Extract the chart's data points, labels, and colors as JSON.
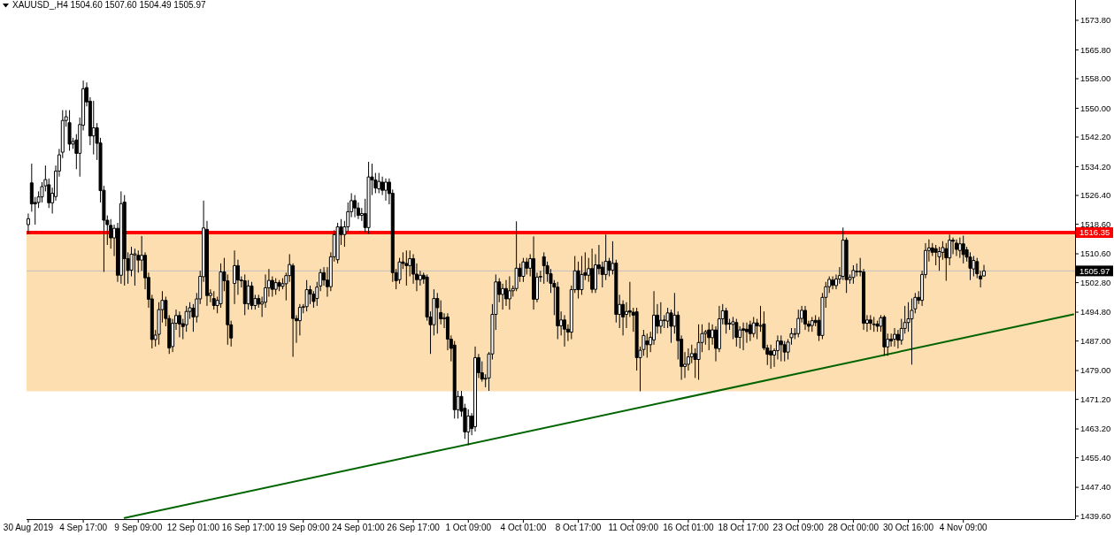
{
  "chart_data": {
    "type": "candlestick",
    "title": "XAUUSD_,H4  1504.60 1507.60 1504.49 1505.97",
    "color": "#000000",
    "categories": [
      "30 Aug 2019",
      null,
      null,
      null,
      null,
      null,
      null,
      null,
      null,
      null,
      null,
      null,
      null,
      null,
      null,
      null,
      "4 Sep 17:00",
      null,
      null,
      null,
      null,
      null,
      null,
      null,
      null,
      null,
      null,
      null,
      null,
      null,
      null,
      null,
      "9 Sep 09:00",
      null,
      null,
      null,
      null,
      null,
      null,
      null,
      null,
      null,
      null,
      null,
      null,
      null,
      null,
      null,
      "12 Sep 01:00",
      null,
      null,
      null,
      null,
      null,
      null,
      null,
      null,
      null,
      null,
      null,
      null,
      null,
      null,
      null,
      "16 Sep 17:00",
      null,
      null,
      null,
      null,
      null,
      null,
      null,
      null,
      null,
      null,
      null,
      null,
      null,
      null,
      null,
      "19 Sep 09:00",
      null,
      null,
      null,
      null,
      null,
      null,
      null,
      null,
      null,
      null,
      null,
      null,
      null,
      null,
      null,
      "24 Sep 01:00",
      null,
      null,
      null,
      null,
      null,
      null,
      null,
      null,
      null,
      null,
      null,
      null,
      null,
      null,
      null,
      "26 Sep 17:00",
      null,
      null,
      null,
      null,
      null,
      null,
      null,
      null,
      null,
      null,
      null,
      null,
      null,
      null,
      null,
      "1 Oct 09:00",
      null,
      null,
      null,
      null,
      null,
      null,
      null,
      null,
      null,
      null,
      null,
      null,
      null,
      null,
      null,
      "4 Oct 01:00",
      null,
      null,
      null,
      null,
      null,
      null,
      null,
      null,
      null,
      null,
      null,
      null,
      null,
      null,
      null,
      "8 Oct 17:00",
      null,
      null,
      null,
      null,
      null,
      null,
      null,
      null,
      null,
      null,
      null,
      null,
      null,
      null,
      null,
      "11 Oct 09:00",
      null,
      null,
      null,
      null,
      null,
      null,
      null,
      null,
      null,
      null,
      null,
      null,
      null,
      null,
      null,
      "16 Oct 01:00",
      null,
      null,
      null,
      null,
      null,
      null,
      null,
      null,
      null,
      null,
      null,
      null,
      null,
      null,
      null,
      "18 Oct 17:00",
      null,
      null,
      null,
      null,
      null,
      null,
      null,
      null,
      null,
      null,
      null,
      null,
      null,
      null,
      null,
      "23 Oct 09:00",
      null,
      null,
      null,
      null,
      null,
      null,
      null,
      null,
      null,
      null,
      null,
      null,
      null,
      null,
      null,
      "28 Oct 00:00",
      null,
      null,
      null,
      null,
      null,
      null,
      null,
      null,
      null,
      null,
      null,
      null,
      null,
      null,
      null,
      "30 Oct 16:00",
      null,
      null,
      null,
      null,
      null,
      null,
      null,
      null,
      null,
      null,
      null,
      null,
      null,
      null,
      null,
      "4 Nov 09:00",
      null,
      null,
      null,
      null,
      null,
      null,
      null,
      null,
      null,
      null,
      null,
      null,
      null,
      null,
      null,
      null,
      null,
      null,
      null,
      null,
      null,
      null,
      null,
      null,
      null,
      null,
      null,
      null,
      null,
      null,
      null,
      null
    ],
    "ohlc": [
      [
        1518.5,
        1521.5,
        1516.0,
        1520.1
      ],
      [
        1529.8,
        1535.0,
        1522.0,
        1524.1
      ],
      [
        1524.5,
        1526.0,
        1518.5,
        1524.1
      ],
      [
        1524.5,
        1527.5,
        1523.0,
        1526.0
      ],
      [
        1526.0,
        1530.0,
        1524.5,
        1528.8
      ],
      [
        1529.0,
        1534.5,
        1527.5,
        1530.7
      ],
      [
        1529.3,
        1531.0,
        1523.0,
        1524.4
      ],
      [
        1524.4,
        1528.5,
        1521.5,
        1527.0
      ],
      [
        1526.1,
        1534.5,
        1525.0,
        1533.0
      ],
      [
        1533.0,
        1539.0,
        1531.5,
        1537.4
      ],
      [
        1538.1,
        1549.5,
        1536.5,
        1546.7
      ],
      [
        1546.7,
        1549.5,
        1545.0,
        1547.7
      ],
      [
        1546.1,
        1549.5,
        1538.5,
        1540.3
      ],
      [
        1540.3,
        1542.0,
        1539.0,
        1541.0
      ],
      [
        1541.4,
        1543.0,
        1533.5,
        1537.8
      ],
      [
        1537.8,
        1547.5,
        1531.5,
        1545.6
      ],
      [
        1545.4,
        1557.5,
        1544.0,
        1555.3
      ],
      [
        1555.6,
        1557.0,
        1550.5,
        1551.7
      ],
      [
        1551.9,
        1553.0,
        1540.0,
        1542.5
      ],
      [
        1542.5,
        1552.0,
        1537.5,
        1544.7
      ],
      [
        1544.7,
        1546.0,
        1536.0,
        1540.5
      ],
      [
        1540.6,
        1542.0,
        1524.5,
        1527.7
      ],
      [
        1527.8,
        1529.0,
        1505.7,
        1519.7
      ],
      [
        1519.7,
        1521.0,
        1513.0,
        1518.5
      ],
      [
        1518.3,
        1520.0,
        1512.0,
        1514.9
      ],
      [
        1514.9,
        1518.5,
        1510.0,
        1517.5
      ],
      [
        1517.5,
        1519.0,
        1503.0,
        1504.8
      ],
      [
        1504.8,
        1527.5,
        1502.5,
        1524.2
      ],
      [
        1524.6,
        1526.5,
        1502.0,
        1509.3
      ],
      [
        1509.3,
        1511.0,
        1502.5,
        1506.1
      ],
      [
        1506.2,
        1512.5,
        1504.5,
        1510.5
      ],
      [
        1510.3,
        1512.0,
        1502.0,
        1510.6
      ],
      [
        1510.2,
        1511.5,
        1505.5,
        1508.9
      ],
      [
        1508.9,
        1515.4,
        1506.0,
        1510.2
      ],
      [
        1510.2,
        1511.0,
        1501.0,
        1504.1
      ],
      [
        1504.2,
        1505.5,
        1496.0,
        1498.3
      ],
      [
        1498.4,
        1499.5,
        1485.0,
        1487.4
      ],
      [
        1487.4,
        1490.0,
        1485.5,
        1488.6
      ],
      [
        1488.8,
        1497.5,
        1486.0,
        1495.5
      ],
      [
        1495.5,
        1500.5,
        1492.0,
        1498.0
      ],
      [
        1498.0,
        1499.0,
        1491.0,
        1493.1
      ],
      [
        1493.1,
        1494.0,
        1483.5,
        1485.1
      ],
      [
        1485.5,
        1493.0,
        1484.0,
        1491.8
      ],
      [
        1491.8,
        1495.5,
        1490.0,
        1493.9
      ],
      [
        1493.9,
        1495.0,
        1488.0,
        1491.6
      ],
      [
        1491.7,
        1493.0,
        1487.5,
        1490.9
      ],
      [
        1491.4,
        1496.5,
        1489.5,
        1495.0
      ],
      [
        1495.0,
        1497.5,
        1493.0,
        1496.0
      ],
      [
        1495.9,
        1497.0,
        1489.5,
        1493.5
      ],
      [
        1493.6,
        1500.0,
        1492.0,
        1498.4
      ],
      [
        1498.4,
        1506.0,
        1497.0,
        1504.5
      ],
      [
        1504.4,
        1525.0,
        1503.0,
        1517.6
      ],
      [
        1517.2,
        1519.5,
        1496.5,
        1499.3
      ],
      [
        1499.3,
        1501.0,
        1497.5,
        1499.9
      ],
      [
        1498.5,
        1500.5,
        1495.5,
        1496.6
      ],
      [
        1496.6,
        1499.0,
        1494.5,
        1498.0
      ],
      [
        1497.1,
        1508.0,
        1496.0,
        1505.7
      ],
      [
        1505.7,
        1509.5,
        1500.5,
        1503.3
      ],
      [
        1503.3,
        1505.0,
        1486.0,
        1491.4
      ],
      [
        1491.4,
        1492.5,
        1485.5,
        1487.8
      ],
      [
        1502.6,
        1511.5,
        1497.0,
        1507.4
      ],
      [
        1507.4,
        1509.0,
        1499.5,
        1503.5
      ],
      [
        1503.5,
        1504.5,
        1501.5,
        1503.3
      ],
      [
        1503.3,
        1505.0,
        1494.0,
        1497.1
      ],
      [
        1497.1,
        1503.5,
        1495.5,
        1501.9
      ],
      [
        1501.9,
        1503.0,
        1495.5,
        1496.6
      ],
      [
        1496.6,
        1499.5,
        1495.5,
        1498.5
      ],
      [
        1498.5,
        1499.5,
        1496.0,
        1497.0
      ],
      [
        1497.0,
        1499.0,
        1493.5,
        1497.5
      ],
      [
        1497.5,
        1505.0,
        1496.0,
        1501.4
      ],
      [
        1501.4,
        1506.5,
        1499.0,
        1503.4
      ],
      [
        1503.4,
        1504.5,
        1499.0,
        1501.0
      ],
      [
        1501.0,
        1504.0,
        1499.5,
        1502.8
      ],
      [
        1502.8,
        1503.5,
        1500.5,
        1501.8
      ],
      [
        1501.8,
        1504.0,
        1501.0,
        1502.5
      ],
      [
        1502.5,
        1505.5,
        1498.0,
        1504.7
      ],
      [
        1504.7,
        1510.5,
        1503.0,
        1507.7
      ],
      [
        1507.4,
        1508.0,
        1482.7,
        1493.1
      ],
      [
        1493.1,
        1494.0,
        1486.5,
        1492.5
      ],
      [
        1492.5,
        1497.0,
        1488.5,
        1496.1
      ],
      [
        1496.1,
        1497.0,
        1494.5,
        1496.3
      ],
      [
        1496.3,
        1503.5,
        1495.0,
        1500.9
      ],
      [
        1500.9,
        1502.0,
        1497.0,
        1499.7
      ],
      [
        1499.7,
        1500.5,
        1496.0,
        1497.7
      ],
      [
        1498.5,
        1503.0,
        1496.5,
        1501.6
      ],
      [
        1501.9,
        1506.5,
        1500.5,
        1505.5
      ],
      [
        1505.5,
        1507.0,
        1502.0,
        1503.5
      ],
      [
        1503.5,
        1507.0,
        1499.0,
        1501.7
      ],
      [
        1501.7,
        1511.0,
        1500.5,
        1509.8
      ],
      [
        1509.8,
        1517.0,
        1508.5,
        1515.8
      ],
      [
        1509.0,
        1519.0,
        1508.0,
        1517.9
      ],
      [
        1517.9,
        1520.0,
        1513.0,
        1515.8
      ],
      [
        1515.8,
        1519.5,
        1512.5,
        1517.9
      ],
      [
        1517.9,
        1524.5,
        1516.5,
        1522.0
      ],
      [
        1522.0,
        1527.0,
        1520.5,
        1525.0
      ],
      [
        1525.0,
        1526.5,
        1520.5,
        1523.0
      ],
      [
        1523.0,
        1524.5,
        1520.0,
        1521.0
      ],
      [
        1521.0,
        1523.0,
        1519.5,
        1521.5
      ],
      [
        1521.5,
        1525.5,
        1516.5,
        1517.7
      ],
      [
        1517.7,
        1535.5,
        1516.0,
        1531.4
      ],
      [
        1531.4,
        1535.0,
        1526.5,
        1530.6
      ],
      [
        1530.6,
        1532.5,
        1527.0,
        1528.4
      ],
      [
        1528.2,
        1532.5,
        1527.0,
        1530.2
      ],
      [
        1530.0,
        1531.5,
        1526.5,
        1527.8
      ],
      [
        1527.8,
        1531.0,
        1525.0,
        1530.0
      ],
      [
        1530.0,
        1531.0,
        1524.0,
        1526.9
      ],
      [
        1527.0,
        1528.0,
        1503.0,
        1505.5
      ],
      [
        1505.5,
        1506.5,
        1501.0,
        1503.3
      ],
      [
        1503.6,
        1509.5,
        1502.5,
        1508.4
      ],
      [
        1508.4,
        1511.0,
        1506.5,
        1508.0
      ],
      [
        1508.0,
        1511.5,
        1502.0,
        1507.4
      ],
      [
        1507.4,
        1511.5,
        1504.5,
        1509.3
      ],
      [
        1509.3,
        1510.5,
        1502.5,
        1505.1
      ],
      [
        1505.1,
        1508.0,
        1500.5,
        1503.6
      ],
      [
        1503.6,
        1506.0,
        1502.0,
        1504.8
      ],
      [
        1504.8,
        1505.5,
        1502.5,
        1503.8
      ],
      [
        1504.3,
        1505.0,
        1492.5,
        1493.5
      ],
      [
        1493.5,
        1495.0,
        1483.5,
        1491.4
      ],
      [
        1491.4,
        1501.0,
        1488.5,
        1498.5
      ],
      [
        1498.5,
        1500.0,
        1489.0,
        1496.0
      ],
      [
        1494.7,
        1498.0,
        1491.5,
        1493.0
      ],
      [
        1493.0,
        1494.5,
        1490.5,
        1493.3
      ],
      [
        1493.5,
        1494.5,
        1484.5,
        1487.5
      ],
      [
        1487.5,
        1488.5,
        1481.5,
        1485.0
      ],
      [
        1485.9,
        1487.0,
        1466.0,
        1468.4
      ],
      [
        1468.4,
        1473.5,
        1466.0,
        1472.0
      ],
      [
        1472.0,
        1473.5,
        1466.5,
        1468.0
      ],
      [
        1468.8,
        1470.0,
        1460.5,
        1462.4
      ],
      [
        1462.4,
        1468.5,
        1458.8,
        1466.7
      ],
      [
        1466.7,
        1467.5,
        1461.5,
        1463.3
      ],
      [
        1463.8,
        1485.5,
        1462.5,
        1482.5
      ],
      [
        1482.5,
        1483.5,
        1477.0,
        1478.4
      ],
      [
        1478.4,
        1481.5,
        1476.0,
        1476.7
      ],
      [
        1476.7,
        1478.0,
        1474.5,
        1476.9
      ],
      [
        1477.0,
        1484.0,
        1473.5,
        1483.5
      ],
      [
        1483.5,
        1497.0,
        1482.0,
        1494.2
      ],
      [
        1494.2,
        1505.0,
        1490.0,
        1503.0
      ],
      [
        1503.0,
        1504.0,
        1497.5,
        1499.6
      ],
      [
        1499.6,
        1502.5,
        1495.5,
        1501.2
      ],
      [
        1501.2,
        1503.5,
        1496.5,
        1498.4
      ],
      [
        1498.4,
        1504.5,
        1495.5,
        1500.6
      ],
      [
        1500.6,
        1502.0,
        1499.0,
        1501.2
      ],
      [
        1501.2,
        1519.4,
        1500.5,
        1506.7
      ],
      [
        1506.7,
        1508.0,
        1503.0,
        1504.5
      ],
      [
        1504.5,
        1509.5,
        1503.0,
        1508.4
      ],
      [
        1508.4,
        1509.5,
        1505.0,
        1506.7
      ],
      [
        1506.7,
        1510.5,
        1504.5,
        1509.3
      ],
      [
        1509.3,
        1515.3,
        1495.5,
        1498.3
      ],
      [
        1498.3,
        1505.5,
        1497.5,
        1504.3
      ],
      [
        1504.3,
        1506.0,
        1503.0,
        1504.5
      ],
      [
        1509.8,
        1511.0,
        1502.5,
        1507.4
      ],
      [
        1507.4,
        1508.5,
        1503.0,
        1505.2
      ],
      [
        1505.2,
        1506.5,
        1500.0,
        1502.6
      ],
      [
        1502.6,
        1503.5,
        1494.0,
        1501.6
      ],
      [
        1501.6,
        1503.0,
        1487.5,
        1491.1
      ],
      [
        1491.1,
        1495.0,
        1488.5,
        1492.7
      ],
      [
        1492.7,
        1494.0,
        1485.5,
        1490.2
      ],
      [
        1490.2,
        1491.5,
        1487.0,
        1489.4
      ],
      [
        1489.4,
        1502.0,
        1487.5,
        1500.9
      ],
      [
        1500.9,
        1510.0,
        1500.0,
        1506.0
      ],
      [
        1506.0,
        1508.5,
        1498.5,
        1500.9
      ],
      [
        1500.9,
        1510.0,
        1499.5,
        1505.0
      ],
      [
        1505.5,
        1511.0,
        1503.5,
        1504.8
      ],
      [
        1504.8,
        1509.5,
        1503.0,
        1506.6
      ],
      [
        1506.6,
        1512.0,
        1500.0,
        1501.0
      ],
      [
        1501.0,
        1510.5,
        1500.0,
        1507.6
      ],
      [
        1507.6,
        1513.0,
        1505.0,
        1506.6
      ],
      [
        1507.0,
        1508.5,
        1501.5,
        1505.0
      ],
      [
        1505.0,
        1515.8,
        1503.5,
        1508.6
      ],
      [
        1508.6,
        1509.5,
        1504.5,
        1506.2
      ],
      [
        1506.2,
        1514.0,
        1505.0,
        1508.0
      ],
      [
        1508.1,
        1509.0,
        1492.0,
        1494.2
      ],
      [
        1494.2,
        1499.5,
        1490.5,
        1496.9
      ],
      [
        1496.9,
        1498.0,
        1488.5,
        1493.5
      ],
      [
        1494.2,
        1497.5,
        1490.5,
        1495.0
      ],
      [
        1495.2,
        1503.0,
        1493.5,
        1494.8
      ],
      [
        1494.8,
        1496.0,
        1489.5,
        1494.0
      ],
      [
        1494.9,
        1496.0,
        1479.0,
        1482.5
      ],
      [
        1482.5,
        1485.5,
        1473.4,
        1484.5
      ],
      [
        1484.7,
        1490.0,
        1483.0,
        1488.5
      ],
      [
        1487.0,
        1489.0,
        1482.5,
        1486.0
      ],
      [
        1486.0,
        1489.5,
        1484.0,
        1488.0
      ],
      [
        1487.3,
        1500.5,
        1486.0,
        1494.0
      ],
      [
        1494.0,
        1497.0,
        1489.0,
        1491.0
      ],
      [
        1491.0,
        1497.5,
        1489.0,
        1492.6
      ],
      [
        1492.6,
        1494.0,
        1490.5,
        1492.7
      ],
      [
        1492.4,
        1496.0,
        1490.5,
        1494.6
      ],
      [
        1494.6,
        1495.5,
        1486.5,
        1491.0
      ],
      [
        1491.0,
        1500.0,
        1489.0,
        1494.0
      ],
      [
        1494.0,
        1495.0,
        1482.0,
        1487.1
      ],
      [
        1487.5,
        1488.5,
        1476.5,
        1480.1
      ],
      [
        1480.1,
        1484.0,
        1477.0,
        1480.7
      ],
      [
        1480.7,
        1485.0,
        1479.0,
        1482.7
      ],
      [
        1482.7,
        1486.0,
        1481.0,
        1483.6
      ],
      [
        1483.6,
        1485.0,
        1477.0,
        1482.0
      ],
      [
        1482.0,
        1491.5,
        1476.5,
        1486.6
      ],
      [
        1486.6,
        1491.5,
        1484.0,
        1489.0
      ],
      [
        1489.0,
        1490.0,
        1486.0,
        1489.5
      ],
      [
        1490.0,
        1492.0,
        1484.5,
        1487.9
      ],
      [
        1487.9,
        1491.5,
        1486.0,
        1490.0
      ],
      [
        1490.0,
        1491.0,
        1481.5,
        1485.0
      ],
      [
        1484.9,
        1496.5,
        1484.0,
        1493.0
      ],
      [
        1493.0,
        1497.0,
        1491.5,
        1495.2
      ],
      [
        1495.2,
        1496.0,
        1489.0,
        1491.5
      ],
      [
        1491.8,
        1493.0,
        1490.0,
        1491.8
      ],
      [
        1491.5,
        1493.5,
        1487.5,
        1492.2
      ],
      [
        1492.0,
        1493.0,
        1485.5,
        1488.0
      ],
      [
        1488.0,
        1491.0,
        1485.0,
        1490.0
      ],
      [
        1490.3,
        1492.0,
        1484.5,
        1489.9
      ],
      [
        1490.2,
        1492.0,
        1486.5,
        1489.5
      ],
      [
        1491.4,
        1492.5,
        1487.0,
        1489.0
      ],
      [
        1489.0,
        1493.5,
        1488.0,
        1491.9
      ],
      [
        1491.9,
        1493.0,
        1487.5,
        1491.1
      ],
      [
        1491.1,
        1496.5,
        1489.5,
        1491.2
      ],
      [
        1491.6,
        1495.0,
        1484.5,
        1485.1
      ],
      [
        1485.1,
        1486.0,
        1480.5,
        1483.4
      ],
      [
        1484.3,
        1486.0,
        1479.5,
        1483.2
      ],
      [
        1483.2,
        1485.0,
        1480.0,
        1484.4
      ],
      [
        1484.4,
        1488.5,
        1482.0,
        1487.0
      ],
      [
        1487.0,
        1488.5,
        1481.5,
        1486.0
      ],
      [
        1486.0,
        1487.0,
        1481.5,
        1484.0
      ],
      [
        1484.0,
        1487.5,
        1482.0,
        1486.7
      ],
      [
        1487.9,
        1490.5,
        1486.0,
        1489.0
      ],
      [
        1489.0,
        1490.5,
        1487.5,
        1489.0
      ],
      [
        1489.0,
        1495.5,
        1488.0,
        1493.1
      ],
      [
        1493.1,
        1496.5,
        1492.0,
        1495.3
      ],
      [
        1495.3,
        1496.5,
        1490.0,
        1491.6
      ],
      [
        1491.6,
        1492.5,
        1489.5,
        1491.0
      ],
      [
        1491.2,
        1493.5,
        1489.5,
        1492.5
      ],
      [
        1492.6,
        1494.0,
        1491.0,
        1492.0
      ],
      [
        1492.6,
        1493.5,
        1487.0,
        1488.5
      ],
      [
        1488.5,
        1500.0,
        1487.5,
        1498.8
      ],
      [
        1498.8,
        1503.0,
        1496.0,
        1501.7
      ],
      [
        1501.7,
        1504.5,
        1500.0,
        1503.7
      ],
      [
        1503.5,
        1504.5,
        1501.0,
        1502.1
      ],
      [
        1502.0,
        1505.0,
        1501.0,
        1503.8
      ],
      [
        1503.8,
        1507.0,
        1502.5,
        1504.7
      ],
      [
        1504.5,
        1517.7,
        1503.5,
        1514.3
      ],
      [
        1514.3,
        1515.0,
        1500.0,
        1503.6
      ],
      [
        1503.6,
        1505.0,
        1502.5,
        1504.2
      ],
      [
        1504.2,
        1507.5,
        1502.5,
        1506.1
      ],
      [
        1505.9,
        1508.0,
        1504.5,
        1505.9
      ],
      [
        1505.9,
        1509.5,
        1504.5,
        1505.8
      ],
      [
        1505.7,
        1506.5,
        1490.0,
        1491.8
      ],
      [
        1491.8,
        1494.0,
        1489.5,
        1492.7
      ],
      [
        1492.7,
        1494.0,
        1490.0,
        1491.8
      ],
      [
        1491.6,
        1493.5,
        1489.5,
        1491.6
      ],
      [
        1491.6,
        1492.5,
        1489.5,
        1491.0
      ],
      [
        1491.0,
        1494.0,
        1489.5,
        1493.3
      ],
      [
        1493.5,
        1494.0,
        1483.0,
        1485.4
      ],
      [
        1485.4,
        1489.0,
        1483.0,
        1487.5
      ],
      [
        1487.5,
        1489.0,
        1485.5,
        1487.0
      ],
      [
        1487.5,
        1490.5,
        1485.5,
        1488.8
      ],
      [
        1488.8,
        1490.0,
        1485.0,
        1487.2
      ],
      [
        1487.2,
        1493.0,
        1486.0,
        1490.4
      ],
      [
        1490.4,
        1496.5,
        1489.0,
        1492.0
      ],
      [
        1492.0,
        1497.5,
        1489.5,
        1493.0
      ],
      [
        1493.0,
        1498.5,
        1480.6,
        1495.3
      ],
      [
        1495.7,
        1500.0,
        1494.5,
        1498.8
      ],
      [
        1498.8,
        1500.5,
        1497.0,
        1498.0
      ],
      [
        1498.0,
        1506.0,
        1496.5,
        1505.0
      ],
      [
        1505.0,
        1513.5,
        1504.0,
        1511.5
      ],
      [
        1511.5,
        1514.5,
        1508.5,
        1512.2
      ],
      [
        1512.2,
        1513.5,
        1510.0,
        1511.0
      ],
      [
        1512.0,
        1513.0,
        1507.5,
        1511.0
      ],
      [
        1509.8,
        1512.5,
        1506.0,
        1511.2
      ],
      [
        1511.0,
        1514.0,
        1509.0,
        1512.3
      ],
      [
        1512.0,
        1513.5,
        1503.3,
        1509.5
      ],
      [
        1509.5,
        1515.8,
        1507.5,
        1514.3
      ],
      [
        1514.3,
        1515.0,
        1510.5,
        1514.0
      ],
      [
        1513.5,
        1514.5,
        1510.0,
        1511.8
      ],
      [
        1511.5,
        1515.0,
        1509.5,
        1513.3
      ],
      [
        1513.3,
        1515.5,
        1508.0,
        1510.4
      ],
      [
        1511.7,
        1512.5,
        1508.5,
        1509.7
      ],
      [
        1509.7,
        1511.0,
        1503.5,
        1506.7
      ],
      [
        1506.5,
        1510.0,
        1504.5,
        1508.8
      ],
      [
        1508.5,
        1509.5,
        1504.0,
        1505.2
      ],
      [
        1504.6,
        1506.0,
        1501.5,
        1503.8
      ],
      [
        1504.6,
        1507.6,
        1504.49,
        1505.97
      ],
      null,
      null,
      null,
      null,
      null,
      null,
      null,
      null,
      null,
      null,
      null,
      null,
      null,
      null,
      null,
      null,
      null,
      null,
      null,
      null,
      null,
      null,
      null,
      null,
      null,
      null
    ],
    "series": [
      {
        "type": "line",
        "color": "#006400",
        "values": [
          null,
          null,
          null,
          null,
          null,
          null,
          null,
          null,
          null,
          null,
          null,
          null,
          null,
          null,
          null,
          null,
          null,
          null,
          null,
          null,
          null,
          null,
          null,
          null,
          null,
          null,
          null,
          null,
          1439.1,
          null,
          null,
          null,
          null,
          null,
          null,
          null,
          null,
          null,
          null,
          null,
          null,
          null,
          null,
          null,
          null,
          null,
          null,
          null,
          null,
          null,
          null,
          null,
          null,
          null,
          null,
          null,
          null,
          null,
          null,
          null,
          null,
          null,
          null,
          null,
          null,
          null,
          null,
          null,
          null,
          null,
          null,
          null,
          null,
          null,
          null,
          null,
          null,
          null,
          null,
          null,
          null,
          null,
          null,
          null,
          null,
          null,
          null,
          null,
          null,
          null,
          null,
          null,
          null,
          null,
          null,
          null,
          null,
          null,
          null,
          null,
          null,
          null,
          null,
          null,
          null,
          null,
          null,
          null,
          null,
          null,
          null,
          null,
          null,
          null,
          null,
          null,
          null,
          null,
          null,
          null,
          null,
          null,
          null,
          null,
          null,
          null,
          null,
          null,
          null,
          null,
          null,
          null,
          null,
          null,
          null,
          null,
          null,
          null,
          null,
          null,
          null,
          null,
          null,
          null,
          null,
          null,
          null,
          null,
          null,
          null,
          null,
          null,
          null,
          null,
          null,
          null,
          null,
          null,
          null,
          null,
          null,
          null,
          null,
          null,
          null,
          null,
          null,
          null,
          null,
          null,
          null,
          null,
          null,
          null,
          null,
          null,
          null,
          null,
          null,
          null,
          null,
          null,
          null,
          null,
          null,
          null,
          null,
          null,
          null,
          null,
          null,
          null,
          null,
          null,
          null,
          null,
          null,
          null,
          null,
          null,
          null,
          null,
          null,
          null,
          null,
          null,
          null,
          null,
          null,
          null,
          null,
          null,
          null,
          null,
          null,
          null,
          null,
          null,
          null,
          null,
          null,
          null,
          null,
          null,
          null,
          null,
          null,
          null,
          null,
          null,
          null,
          null,
          null,
          null,
          null,
          null,
          null,
          null,
          null,
          null,
          null,
          null,
          null,
          null,
          null,
          null,
          null,
          null,
          null,
          null,
          null,
          null,
          null,
          null,
          null,
          null,
          null,
          null,
          null,
          null,
          null,
          null,
          null,
          null,
          null,
          null,
          null,
          null,
          null,
          null,
          null,
          null,
          null,
          null,
          null,
          null,
          null,
          null,
          null,
          null,
          null,
          null,
          null,
          null,
          null,
          null,
          null,
          null,
          null,
          null,
          null,
          null,
          null,
          null,
          null,
          null,
          null,
          null,
          null,
          null,
          null,
          null,
          null,
          null,
          1494.2
        ]
      }
    ],
    "ylim": [
      1438.8,
      1579.3
    ],
    "yticks": [
      {
        "value": 1439.6,
        "label": "1439.60"
      },
      {
        "value": 1447.4,
        "label": "1447.40"
      },
      {
        "value": 1455.4,
        "label": "1455.40"
      },
      {
        "value": 1463.2,
        "label": "1463.20"
      },
      {
        "value": 1471.2,
        "label": "1471.20"
      },
      {
        "value": 1479,
        "label": "1479.00"
      },
      {
        "value": 1487,
        "label": "1487.00"
      },
      {
        "value": 1494.8,
        "label": "1494.80"
      },
      {
        "value": 1502.8,
        "label": "1502.80"
      },
      {
        "value": 1510.6,
        "label": "1510.60"
      },
      {
        "value": 1518.6,
        "label": "1518.60"
      },
      {
        "value": 1526.4,
        "label": "1526.40"
      },
      {
        "value": 1534.2,
        "label": "1534.20"
      },
      {
        "value": 1542.2,
        "label": "1542.20"
      },
      {
        "value": 1550,
        "label": "1550.00"
      },
      {
        "value": 1558,
        "label": "1558.00"
      },
      {
        "value": 1565.8,
        "label": "1565.80"
      },
      {
        "value": 1573.8,
        "label": "1573.80"
      }
    ],
    "bands": [
      {
        "axis": "y",
        "from": 1473.4,
        "to": 1516.35,
        "color": "#fcdeb0"
      }
    ],
    "ref_lines": [
      {
        "axis": "y",
        "value": 1516.35,
        "label": "1516.35",
        "color": "#ff0000"
      },
      {
        "axis": "y",
        "value": 1505.97,
        "label": "1505.97",
        "color": "#c0c0c0"
      }
    ]
  }
}
